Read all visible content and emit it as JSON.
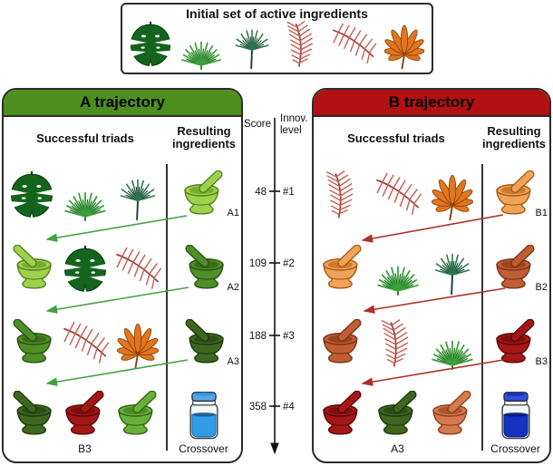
{
  "initial_box": {
    "title": "Initial set of active ingredients",
    "ingredients": [
      "monstera-leaf",
      "fan-palm-leaf",
      "small-fan-palm-leaf",
      "pink-feather-upright-leaf",
      "pink-feather-angled-leaf",
      "orange-fatsia-leaf"
    ]
  },
  "axis": {
    "score_label": "Score",
    "innov_label_line1": "Innov.",
    "innov_label_line2": "level",
    "ticks": [
      {
        "score": "48",
        "level": "#1"
      },
      {
        "score": "109",
        "level": "#2"
      },
      {
        "score": "188",
        "level": "#3"
      },
      {
        "score": "358",
        "level": "#4"
      }
    ]
  },
  "panels": [
    {
      "id": "A",
      "title": "A trajectory",
      "header_color": "#4e8e1d",
      "arrow_color": "#44a044",
      "col_triads": "Successful triads",
      "col_results": "Resulting ingredients",
      "rows": [
        {
          "triad": [
            {
              "icon": "monstera-leaf"
            },
            {
              "icon": "fan-palm-leaf"
            },
            {
              "icon": "small-fan-palm-leaf"
            }
          ],
          "result": {
            "icon": "mortar-light-green",
            "label": "A1"
          }
        },
        {
          "triad": [
            {
              "icon": "mortar-light-green"
            },
            {
              "icon": "monstera-leaf"
            },
            {
              "icon": "pink-feather-angled-leaf"
            }
          ],
          "result": {
            "icon": "mortar-green",
            "label": "A2"
          }
        },
        {
          "triad": [
            {
              "icon": "mortar-green"
            },
            {
              "icon": "pink-feather-angled-leaf"
            },
            {
              "icon": "orange-fatsia-leaf"
            }
          ],
          "result": {
            "icon": "mortar-dark-green",
            "label": "A3"
          }
        },
        {
          "triad": [
            {
              "icon": "mortar-dark-green",
              "label": ""
            },
            {
              "icon": "mortar-dark-red",
              "label": "B3"
            },
            {
              "icon": "mortar-bright-green",
              "label": ""
            }
          ],
          "result": {
            "icon": "jar-light-blue",
            "label": "Crossover"
          }
        }
      ]
    },
    {
      "id": "B",
      "title": "B trajectory",
      "header_color": "#b11111",
      "arrow_color": "#b03028",
      "col_triads": "Successful triads",
      "col_results": "Resulting ingredients",
      "rows": [
        {
          "triad": [
            {
              "icon": "pink-feather-upright-leaf"
            },
            {
              "icon": "pink-feather-angled-leaf"
            },
            {
              "icon": "orange-fatsia-leaf"
            }
          ],
          "result": {
            "icon": "mortar-orange",
            "label": "B1"
          }
        },
        {
          "triad": [
            {
              "icon": "mortar-orange"
            },
            {
              "icon": "fan-palm-leaf"
            },
            {
              "icon": "small-fan-palm-leaf"
            }
          ],
          "result": {
            "icon": "mortar-terracotta",
            "label": "B2"
          }
        },
        {
          "triad": [
            {
              "icon": "mortar-terracotta"
            },
            {
              "icon": "pink-feather-upright-leaf"
            },
            {
              "icon": "fan-palm-leaf"
            }
          ],
          "result": {
            "icon": "mortar-dark-red",
            "label": "B3"
          }
        },
        {
          "triad": [
            {
              "icon": "mortar-dark-red",
              "label": ""
            },
            {
              "icon": "mortar-dark-green",
              "label": "A3"
            },
            {
              "icon": "mortar-terracotta-light",
              "label": ""
            }
          ],
          "result": {
            "icon": "jar-dark-blue",
            "label": "Crossover"
          }
        }
      ]
    }
  ],
  "icons": {
    "monstera-leaf": {
      "symbol": "monstera",
      "c1": "#14641e",
      "c2": "#0b3f10"
    },
    "fan-palm-leaf": {
      "symbol": "fanpalm",
      "c1": "#3c9e3c",
      "c2": "#1c6b1c"
    },
    "small-fan-palm-leaf": {
      "symbol": "smallfan",
      "c1": "#2e7550",
      "c2": "#17422c"
    },
    "pink-feather-upright-leaf": {
      "symbol": "featherup",
      "c1": "#c4635a",
      "c2": "#9e3f36"
    },
    "pink-feather-angled-leaf": {
      "symbol": "featherang",
      "c1": "#c4635a",
      "c2": "#9e3f36"
    },
    "orange-fatsia-leaf": {
      "symbol": "fatsia",
      "c1": "#e0761f",
      "c2": "#8f3d07"
    },
    "mortar-light-green": {
      "symbol": "mortar",
      "c1": "#9ed24e",
      "c2": "#55821b",
      "c3": "#76ad30"
    },
    "mortar-green": {
      "symbol": "mortar",
      "c1": "#4f8f28",
      "c2": "#2a5310",
      "c3": "#3a6d18"
    },
    "mortar-dark-green": {
      "symbol": "mortar",
      "c1": "#3f661f",
      "c2": "#1f3a0c",
      "c3": "#2d4d14"
    },
    "mortar-bright-green": {
      "symbol": "mortar",
      "c1": "#67b13a",
      "c2": "#336412",
      "c3": "#4b8c24"
    },
    "mortar-orange": {
      "symbol": "mortar",
      "c1": "#f2a35b",
      "c2": "#a85912",
      "c3": "#cd7a2e"
    },
    "mortar-terracotta": {
      "symbol": "mortar",
      "c1": "#bf5d35",
      "c2": "#7b3413",
      "c3": "#97451f"
    },
    "mortar-dark-red": {
      "symbol": "mortar",
      "c1": "#a51717",
      "c2": "#5c0707",
      "c3": "#7c0f0f"
    },
    "mortar-terracotta-light": {
      "symbol": "mortar",
      "c1": "#d5794e",
      "c2": "#8a3f1c",
      "c3": "#aa572f"
    },
    "jar-light-blue": {
      "symbol": "jar",
      "c1": "#2f9ce8",
      "c2": "#155a92",
      "c3": "#57a7e2"
    },
    "jar-dark-blue": {
      "symbol": "jar",
      "c1": "#1533c2",
      "c2": "#0a1a6e",
      "c3": "#2d51d6"
    }
  }
}
